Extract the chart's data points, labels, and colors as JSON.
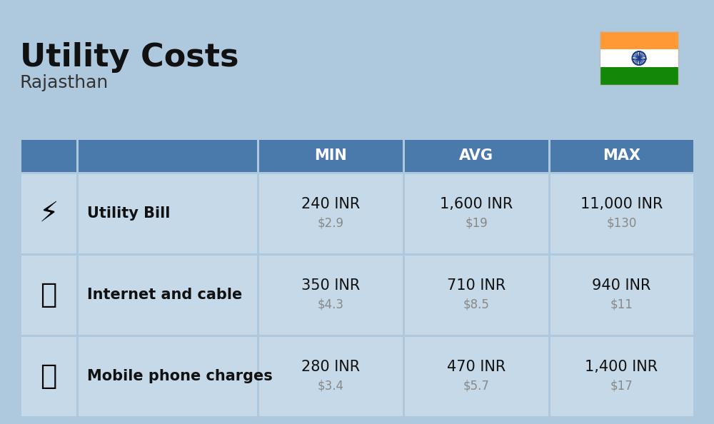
{
  "title": "Utility Costs",
  "subtitle": "Rajasthan",
  "background_color": "#aec9dd",
  "header_bg_color": "#4a7aab",
  "header_text_color": "#ffffff",
  "row_bg_color": "#c5d9e8",
  "table_border_color": "#aec9dd",
  "headers": [
    "MIN",
    "AVG",
    "MAX"
  ],
  "rows": [
    {
      "label": "Utility Bill",
      "min_inr": "240 INR",
      "min_usd": "$2.9",
      "avg_inr": "1,600 INR",
      "avg_usd": "$19",
      "max_inr": "11,000 INR",
      "max_usd": "$130"
    },
    {
      "label": "Internet and cable",
      "min_inr": "350 INR",
      "min_usd": "$4.3",
      "avg_inr": "710 INR",
      "avg_usd": "$8.5",
      "max_inr": "940 INR",
      "max_usd": "$11"
    },
    {
      "label": "Mobile phone charges",
      "min_inr": "280 INR",
      "min_usd": "$3.4",
      "avg_inr": "470 INR",
      "avg_usd": "$5.7",
      "max_inr": "1,400 INR",
      "max_usd": "$17"
    }
  ],
  "india_flag_colors": {
    "top": "#FF9933",
    "middle": "#FFFFFF",
    "bottom": "#138808",
    "chakra": "#1a3a8c"
  },
  "inr_fontsize": 15,
  "usd_fontsize": 12,
  "label_fontsize": 15,
  "header_fontsize": 15,
  "title_fontsize": 32,
  "subtitle_fontsize": 18,
  "usd_color": "#888888",
  "label_color": "#111111",
  "inr_color": "#111111"
}
